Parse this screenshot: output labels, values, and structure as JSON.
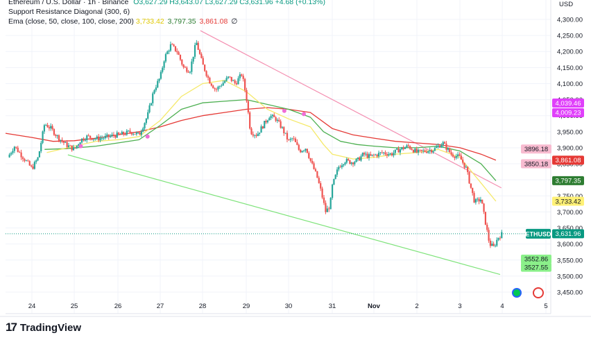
{
  "legend": {
    "symbol": "Ethereum / U.S. Dollar · 1h · Binance",
    "ohlc": "O3,627.29  H3,643.07  L3,627.29  C3,631.96  +4.68 (+0.13%)",
    "indicator1": "Support Resistance Diagonal (300, 6)",
    "ema_label": "Ema (close, 50, close, 100, close, 200)",
    "ema_values": [
      "3,733.42",
      "3,797.35",
      "3,861.08",
      "∅"
    ]
  },
  "brand": {
    "logo": "17",
    "name": "TradingView"
  },
  "currency": "USD",
  "colors": {
    "up": "#26a69a",
    "down": "#ef5350",
    "ema50": "#f5e96a",
    "ema100": "#4caf50",
    "ema200": "#e53935",
    "resistance": "#f48fb1",
    "support": "#7ee37a",
    "current": "#089981"
  },
  "chart_data": {
    "type": "candlestick",
    "symbol": "ETHUSD",
    "x_ticks": [
      "24",
      "25",
      "26",
      "27",
      "28",
      "29",
      "30",
      "31",
      "Nov",
      "2",
      "3",
      "4",
      "5"
    ],
    "y_ticks": [
      "3,450.00",
      "3,500.00",
      "3,550.00",
      "3,600.00",
      "3,650.00",
      "3,700.00",
      "3,750.00",
      "3,800.00",
      "3,850.00",
      "3,900.00",
      "3,950.00",
      "4,000.00",
      "4,050.00",
      "4,100.00",
      "4,150.00",
      "4,200.00",
      "4,250.00",
      "4,300.00"
    ],
    "ylim": [
      3425,
      4340
    ],
    "xlim": [
      23.4,
      5.95
    ],
    "close_path": [
      [
        23.45,
        3870
      ],
      [
        23.6,
        3905
      ],
      [
        23.8,
        3870
      ],
      [
        24.0,
        3835
      ],
      [
        24.15,
        3870
      ],
      [
        24.3,
        3975
      ],
      [
        24.45,
        3960
      ],
      [
        24.6,
        3935
      ],
      [
        24.8,
        3910
      ],
      [
        25.0,
        3895
      ],
      [
        25.15,
        3925
      ],
      [
        25.3,
        3935
      ],
      [
        25.5,
        3928
      ],
      [
        25.7,
        3932
      ],
      [
        25.9,
        3938
      ],
      [
        26.1,
        3942
      ],
      [
        26.3,
        3950
      ],
      [
        26.5,
        3940
      ],
      [
        26.7,
        4000
      ],
      [
        26.85,
        4080
      ],
      [
        27.0,
        4120
      ],
      [
        27.1,
        4180
      ],
      [
        27.25,
        4220
      ],
      [
        27.4,
        4200
      ],
      [
        27.55,
        4150
      ],
      [
        27.7,
        4140
      ],
      [
        27.85,
        4230
      ],
      [
        28.0,
        4160
      ],
      [
        28.15,
        4110
      ],
      [
        28.3,
        4080
      ],
      [
        28.45,
        4100
      ],
      [
        28.6,
        4120
      ],
      [
        28.75,
        4100
      ],
      [
        28.9,
        4130
      ],
      [
        29.0,
        4060
      ],
      [
        29.1,
        3950
      ],
      [
        29.25,
        3940
      ],
      [
        29.4,
        3970
      ],
      [
        29.55,
        4000
      ],
      [
        29.7,
        3990
      ],
      [
        29.85,
        3960
      ],
      [
        30.0,
        3920
      ],
      [
        30.1,
        3930
      ],
      [
        30.25,
        3890
      ],
      [
        30.4,
        3900
      ],
      [
        30.5,
        3860
      ],
      [
        30.65,
        3810
      ],
      [
        30.75,
        3760
      ],
      [
        30.85,
        3700
      ],
      [
        30.95,
        3720
      ],
      [
        31.0,
        3780
      ],
      [
        31.15,
        3840
      ],
      [
        31.3,
        3860
      ],
      [
        31.45,
        3855
      ],
      [
        31.6,
        3860
      ],
      [
        31.75,
        3880
      ],
      [
        31.9,
        3872
      ],
      [
        32.05,
        3878
      ],
      [
        32.2,
        3885
      ],
      [
        32.4,
        3880
      ],
      [
        32.6,
        3895
      ],
      [
        32.8,
        3905
      ],
      [
        33.0,
        3885
      ],
      [
        33.2,
        3890
      ],
      [
        33.4,
        3895
      ],
      [
        33.6,
        3915
      ],
      [
        33.8,
        3880
      ],
      [
        34.0,
        3870
      ],
      [
        34.15,
        3835
      ],
      [
        34.25,
        3780
      ],
      [
        34.35,
        3730
      ],
      [
        34.5,
        3740
      ],
      [
        34.6,
        3670
      ],
      [
        34.7,
        3600
      ],
      [
        34.8,
        3590
      ],
      [
        34.9,
        3620
      ],
      [
        35.0,
        3632
      ]
    ],
    "ema50_values": [
      [
        24.35,
        3885
      ],
      [
        25.0,
        3905
      ],
      [
        25.5,
        3920
      ],
      [
        26.0,
        3925
      ],
      [
        26.5,
        3935
      ],
      [
        27.0,
        3985
      ],
      [
        27.5,
        4060
      ],
      [
        28.0,
        4100
      ],
      [
        28.5,
        4110
      ],
      [
        29.0,
        4075
      ],
      [
        29.5,
        4020
      ],
      [
        30.0,
        3990
      ],
      [
        30.5,
        3965
      ],
      [
        30.8,
        3910
      ],
      [
        31.0,
        3880
      ],
      [
        31.5,
        3865
      ],
      [
        32.0,
        3870
      ],
      [
        32.5,
        3880
      ],
      [
        33.0,
        3885
      ],
      [
        33.5,
        3895
      ],
      [
        34.0,
        3870
      ],
      [
        34.5,
        3790
      ],
      [
        34.85,
        3733.42
      ]
    ],
    "ema100_values": [
      [
        24.3,
        3895
      ],
      [
        24.8,
        3897
      ],
      [
        25.5,
        3905
      ],
      [
        26.0,
        3915
      ],
      [
        26.5,
        3925
      ],
      [
        27.0,
        3970
      ],
      [
        27.5,
        4020
      ],
      [
        28.0,
        4040
      ],
      [
        28.5,
        4045
      ],
      [
        29.0,
        4050
      ],
      [
        29.5,
        4035
      ],
      [
        30.0,
        4020
      ],
      [
        30.5,
        3995
      ],
      [
        30.8,
        3950
      ],
      [
        31.2,
        3920
      ],
      [
        31.6,
        3910
      ],
      [
        32.0,
        3905
      ],
      [
        32.5,
        3900
      ],
      [
        33.0,
        3900
      ],
      [
        33.5,
        3905
      ],
      [
        34.0,
        3890
      ],
      [
        34.5,
        3850
      ],
      [
        34.85,
        3797.35
      ]
    ],
    "ema200_values": [
      [
        23.4,
        3945
      ],
      [
        24.0,
        3932
      ],
      [
        24.5,
        3920
      ],
      [
        25.0,
        3922
      ],
      [
        25.5,
        3930
      ],
      [
        26.0,
        3940
      ],
      [
        26.5,
        3950
      ],
      [
        27.0,
        3965
      ],
      [
        27.5,
        3985
      ],
      [
        28.0,
        4000
      ],
      [
        28.5,
        4010
      ],
      [
        29.0,
        4020
      ],
      [
        29.5,
        4025
      ],
      [
        30.0,
        4020
      ],
      [
        30.5,
        4010
      ],
      [
        31.0,
        3960
      ],
      [
        31.5,
        3940
      ],
      [
        32.0,
        3930
      ],
      [
        32.5,
        3920
      ],
      [
        33.0,
        3915
      ],
      [
        33.5,
        3910
      ],
      [
        34.0,
        3900
      ],
      [
        34.5,
        3880
      ],
      [
        34.85,
        3861.08
      ]
    ],
    "resistance_line": {
      "from": [
        27.95,
        4265
      ],
      "to": [
        34.98,
        3775
      ]
    },
    "support_line": {
      "from": [
        24.85,
        3878
      ],
      "to": [
        34.95,
        3505
      ]
    },
    "price_labels": [
      {
        "text": "4,039.46",
        "price": 4039.46,
        "color": "#e040fb"
      },
      {
        "text": "4,009.23",
        "price": 4009.23,
        "color": "#e040fb"
      },
      {
        "text": "3896.18",
        "price": 3896.18,
        "color": "#f8bbd0",
        "fg": "#131722"
      },
      {
        "text": "3850.18",
        "price": 3850.18,
        "color": "#f8bbd0",
        "fg": "#131722"
      },
      {
        "text": "3,861.08",
        "price": 3861.08,
        "color": "#e53935"
      },
      {
        "text": "3,797.35",
        "price": 3797.35,
        "color": "#2e7d32"
      },
      {
        "text": "3,733.42",
        "price": 3733.42,
        "color": "#fff176",
        "fg": "#131722"
      },
      {
        "text": "3,631.96",
        "price": 3631.96,
        "color": "#089981"
      },
      {
        "text": "3552.86",
        "price": 3552.86,
        "color": "#8bf08a",
        "fg": "#131722"
      },
      {
        "text": "3527.55",
        "price": 3527.55,
        "color": "#8bf08a",
        "fg": "#131722"
      }
    ],
    "symbol_tag": "ETHUSD",
    "current_price": 3631.96
  }
}
